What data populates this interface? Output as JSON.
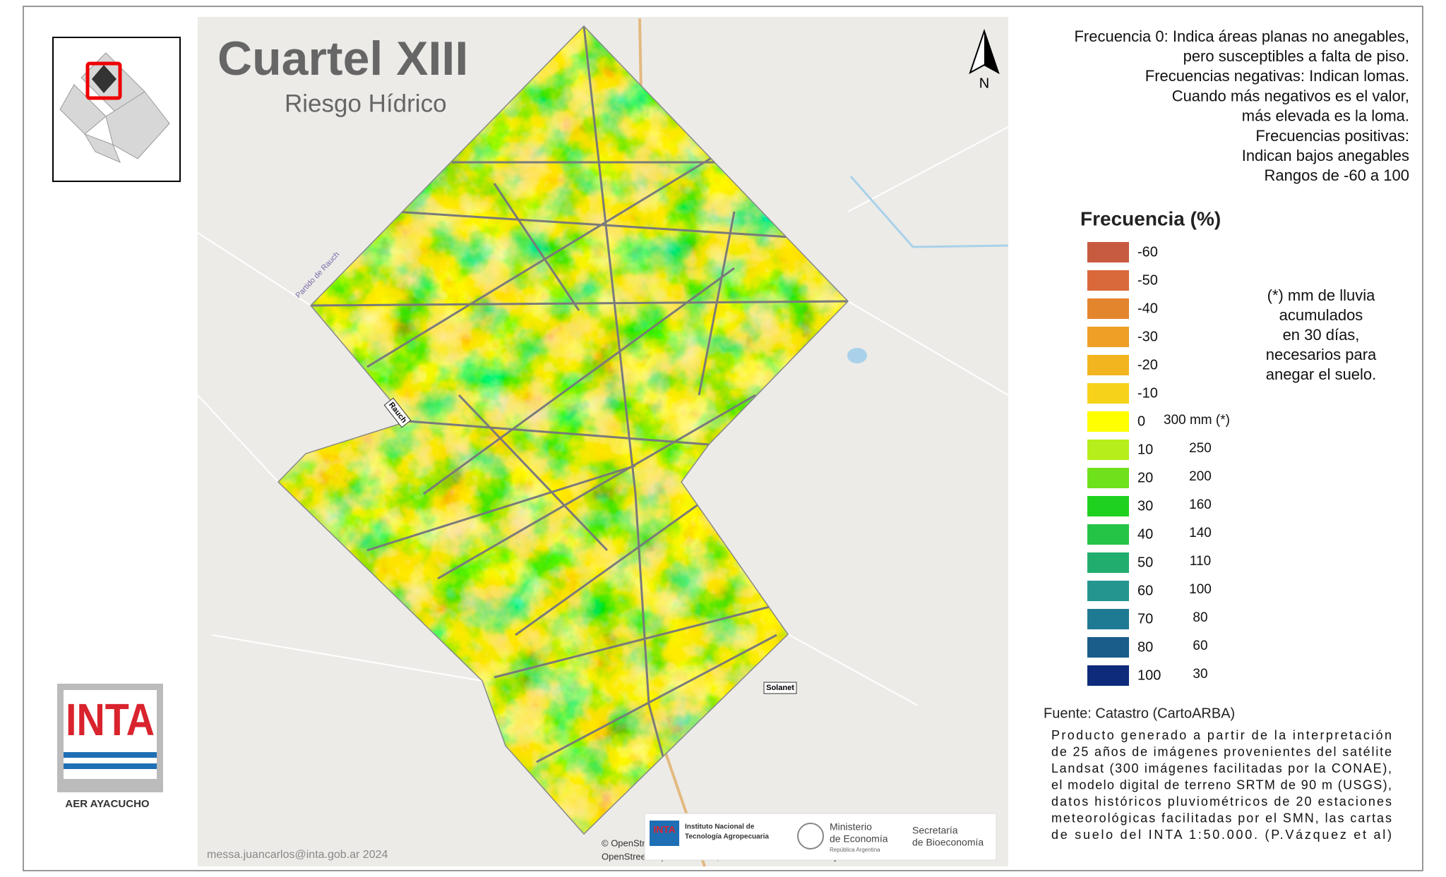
{
  "title": "Cuartel XIII",
  "subtitle": "Riesgo Hídrico",
  "description": [
    "Frecuencia 0: Indica áreas planas no anegables,",
    "pero susceptibles a falta de piso.",
    "Frecuencias negativas: Indican lomas.",
    "Cuando más negativos es el valor,",
    "más elevada es la loma.",
    "Frecuencias positivas:",
    "Indican bajos anegables",
    "Rangos de -60 a 100"
  ],
  "legend": {
    "title": "Frecuencia (%)",
    "items": [
      {
        "label": "-60",
        "color": "#c75b40"
      },
      {
        "label": "-50",
        "color": "#d9683a"
      },
      {
        "label": "-40",
        "color": "#e3852d"
      },
      {
        "label": "-30",
        "color": "#eda025"
      },
      {
        "label": "-20",
        "color": "#f2b51f"
      },
      {
        "label": "-10",
        "color": "#f7d21a"
      },
      {
        "label": "0",
        "mm": "300 mm (*)",
        "color": "#ffff00"
      },
      {
        "label": "10",
        "mm": "250",
        "color": "#b5ee1a"
      },
      {
        "label": "20",
        "mm": "200",
        "color": "#6fe11c"
      },
      {
        "label": "30",
        "mm": "160",
        "color": "#1fd11f"
      },
      {
        "label": "40",
        "mm": "140",
        "color": "#25c446"
      },
      {
        "label": "50",
        "mm": "110",
        "color": "#21ad6e"
      },
      {
        "label": "60",
        "mm": "100",
        "color": "#24968f"
      },
      {
        "label": "70",
        "mm": "80",
        "color": "#1e7a93"
      },
      {
        "label": "80",
        "mm": "60",
        "color": "#1a5c8a"
      },
      {
        "label": "100",
        "mm": "30",
        "color": "#0e2a7a"
      }
    ]
  },
  "note": [
    "(*) mm de lluvia",
    "acumulados",
    "en 30 días,",
    "necesarios para",
    "anegar el suelo."
  ],
  "source": "Fuente: Catastro (CartoARBA)",
  "product": [
    "Producto generado a partir de la interpretación",
    "de 25 años de imágenes provenientes del satélite",
    "Landsat (300 imágenes facilitadas por la CONAE),",
    "el modelo digital de terreno SRTM de 90 m (USGS),",
    "datos históricos pluviométricos de 20 estaciones",
    "meteorológicas facilitadas por el SMN, las cartas",
    "de suelo del INTA 1:50.000. (P.Vázquez et al)"
  ],
  "map_labels": {
    "partido": "Partido de Rauch",
    "rauch": "Rauch",
    "solanet": "Solanet",
    "north": "N",
    "attribution": [
      "© OpenStreetMap",
      "OpenStreetMap contributors, and the GIS user community"
    ]
  },
  "inta_logo": {
    "name": "INTA",
    "office": "AER AYACUCHO"
  },
  "credit": "messa.juancarlos@inta.gob.ar 2024",
  "partner_logos": {
    "inta": [
      "Instituto Nacional de",
      "Tecnología Agropecuaria"
    ],
    "inta_mark": "INTA",
    "ministry": [
      "Ministerio",
      "de Economía",
      "República Argentina"
    ],
    "secretariat": [
      "Secretaría",
      "de Bioeconomía"
    ]
  }
}
